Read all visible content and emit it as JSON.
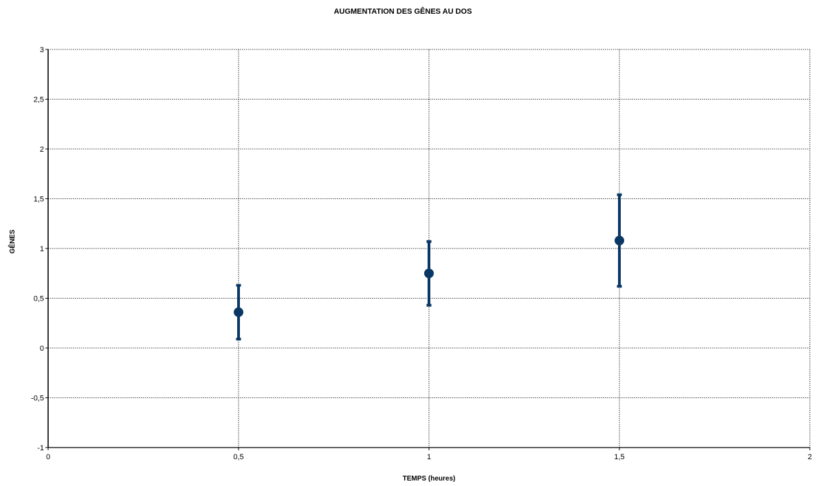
{
  "chart_data": {
    "type": "scatter",
    "title": "AUGMENTATION DES GÊNES AU DOS",
    "xlabel": "TEMPS (heures)",
    "ylabel": "GÊNES",
    "xlim": [
      0,
      2
    ],
    "ylim": [
      -1,
      3
    ],
    "x_ticks": [
      "0",
      "0,5",
      "1",
      "1,5",
      "2"
    ],
    "y_ticks": [
      "-1",
      "-0,5",
      "0",
      "0,5",
      "1",
      "1,5",
      "2",
      "2,5",
      "3"
    ],
    "grid": true,
    "legend": "none",
    "color": "#0a3864",
    "points": [
      {
        "x": 0.5,
        "y": 0.36,
        "err_low": 0.09,
        "err_high": 0.63
      },
      {
        "x": 1.0,
        "y": 0.75,
        "err_low": 0.43,
        "err_high": 1.07
      },
      {
        "x": 1.5,
        "y": 1.08,
        "err_low": 0.62,
        "err_high": 1.54
      }
    ]
  }
}
